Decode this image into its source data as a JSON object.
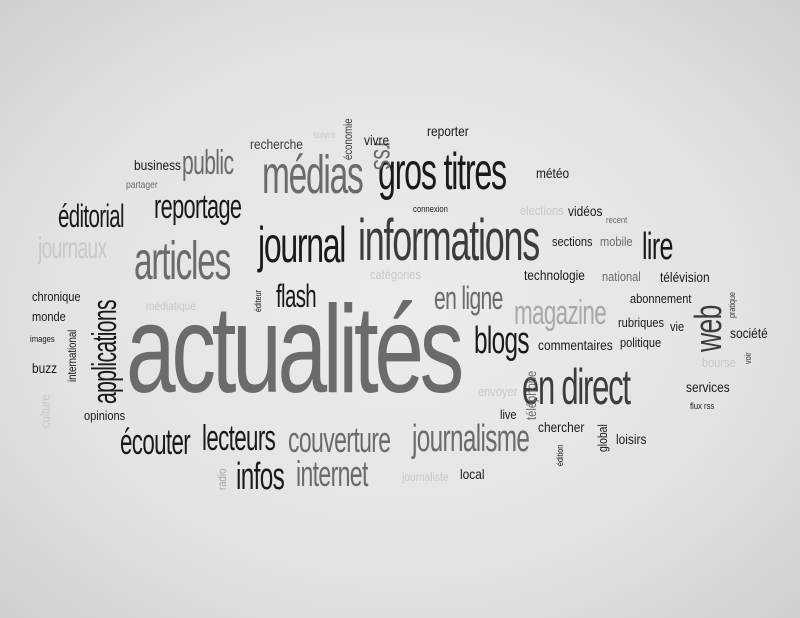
{
  "words": {
    "actualites": "actualités",
    "informations": "informations",
    "journal": "journal",
    "gros_titres": "gros titres",
    "medias": "médias",
    "articles": "articles",
    "en_direct": "en direct",
    "journalisme": "journalisme",
    "couverture": "couverture",
    "magazine": "magazine",
    "blogs": "blogs",
    "en_ligne": "en ligne",
    "lecteurs": "lecteurs",
    "ecouter": "écouter",
    "infos": "infos",
    "internet": "internet",
    "applications": "applications",
    "reportage": "reportage",
    "public": "public",
    "editorial": "éditorial",
    "journaux": "journaux",
    "flash": "flash",
    "lire": "lire",
    "web": "web",
    "rss": "rss",
    "business": "business",
    "partager": "partager",
    "recherche": "recherche",
    "suivre": "suivre",
    "economie": "économie",
    "vivre": "vivre",
    "reporter": "reporter",
    "meteo": "météo",
    "connexion": "connexion",
    "elections": "elections",
    "videos": "vidéos",
    "recent": "recent",
    "sections": "sections",
    "mobile": "mobile",
    "categories": "catégories",
    "technologie": "technologie",
    "national": "national",
    "television": "télévision",
    "abonnement": "abonnement",
    "pratique": "pratique",
    "chronique": "chronique",
    "monde": "monde",
    "images": "images",
    "buzz": "buzz",
    "international": "international",
    "culture": "culture",
    "opinions": "opinions",
    "mediatique": "médiatique",
    "editeur": "éditeur",
    "rubriques": "rubriques",
    "vie": "vie",
    "societe": "société",
    "voir": "voir",
    "commentaires": "commentaires",
    "politique": "politique",
    "bourse": "bourse",
    "services": "services",
    "flux_rss": "flux rss",
    "envoyer": "envoyer",
    "telephone": "téléphone",
    "live": "live",
    "chercher": "chercher",
    "edition": "édition",
    "global": "global",
    "loisirs": "loisirs",
    "radio": "radio",
    "journaliste": "journaliste",
    "local": "local"
  }
}
